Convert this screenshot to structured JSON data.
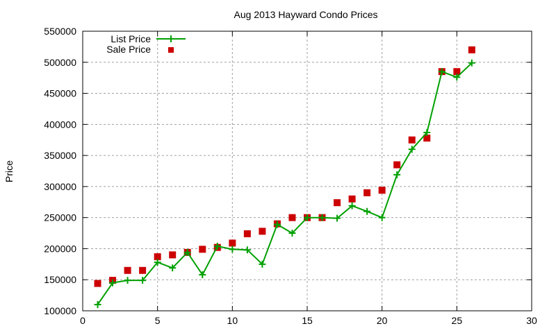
{
  "chart_data": {
    "type": "line",
    "title": "Aug 2013 Hayward Condo Prices",
    "xlabel": "",
    "ylabel": "Price",
    "xlim": [
      0,
      30
    ],
    "ylim": [
      100000,
      550000
    ],
    "x_ticks": [
      0,
      5,
      10,
      15,
      20,
      25,
      30
    ],
    "y_ticks": [
      100000,
      150000,
      200000,
      250000,
      300000,
      350000,
      400000,
      450000,
      500000,
      550000
    ],
    "grid": true,
    "legend_position": "top-left",
    "x": [
      1,
      2,
      3,
      4,
      5,
      6,
      7,
      8,
      9,
      10,
      11,
      12,
      13,
      14,
      15,
      16,
      17,
      18,
      19,
      20,
      21,
      22,
      23,
      24,
      25,
      26
    ],
    "series": [
      {
        "name": "List Price",
        "style": "linespoints",
        "marker": "plus",
        "color": "#00a000",
        "values": [
          110000,
          145000,
          149000,
          149000,
          178000,
          169000,
          194000,
          158000,
          204000,
          199000,
          198000,
          175000,
          239000,
          225000,
          250000,
          250000,
          249000,
          269000,
          260000,
          250000,
          319000,
          360000,
          387000,
          485000,
          476000,
          499000
        ]
      },
      {
        "name": "Sale Price",
        "style": "points",
        "marker": "square",
        "color": "#cc0000",
        "values": [
          144000,
          149000,
          165000,
          165000,
          187000,
          190000,
          194000,
          199000,
          202000,
          209000,
          224000,
          228000,
          240000,
          250000,
          250000,
          250000,
          274000,
          280000,
          290000,
          294000,
          335000,
          375000,
          378000,
          485000,
          485000,
          520000
        ]
      }
    ]
  }
}
